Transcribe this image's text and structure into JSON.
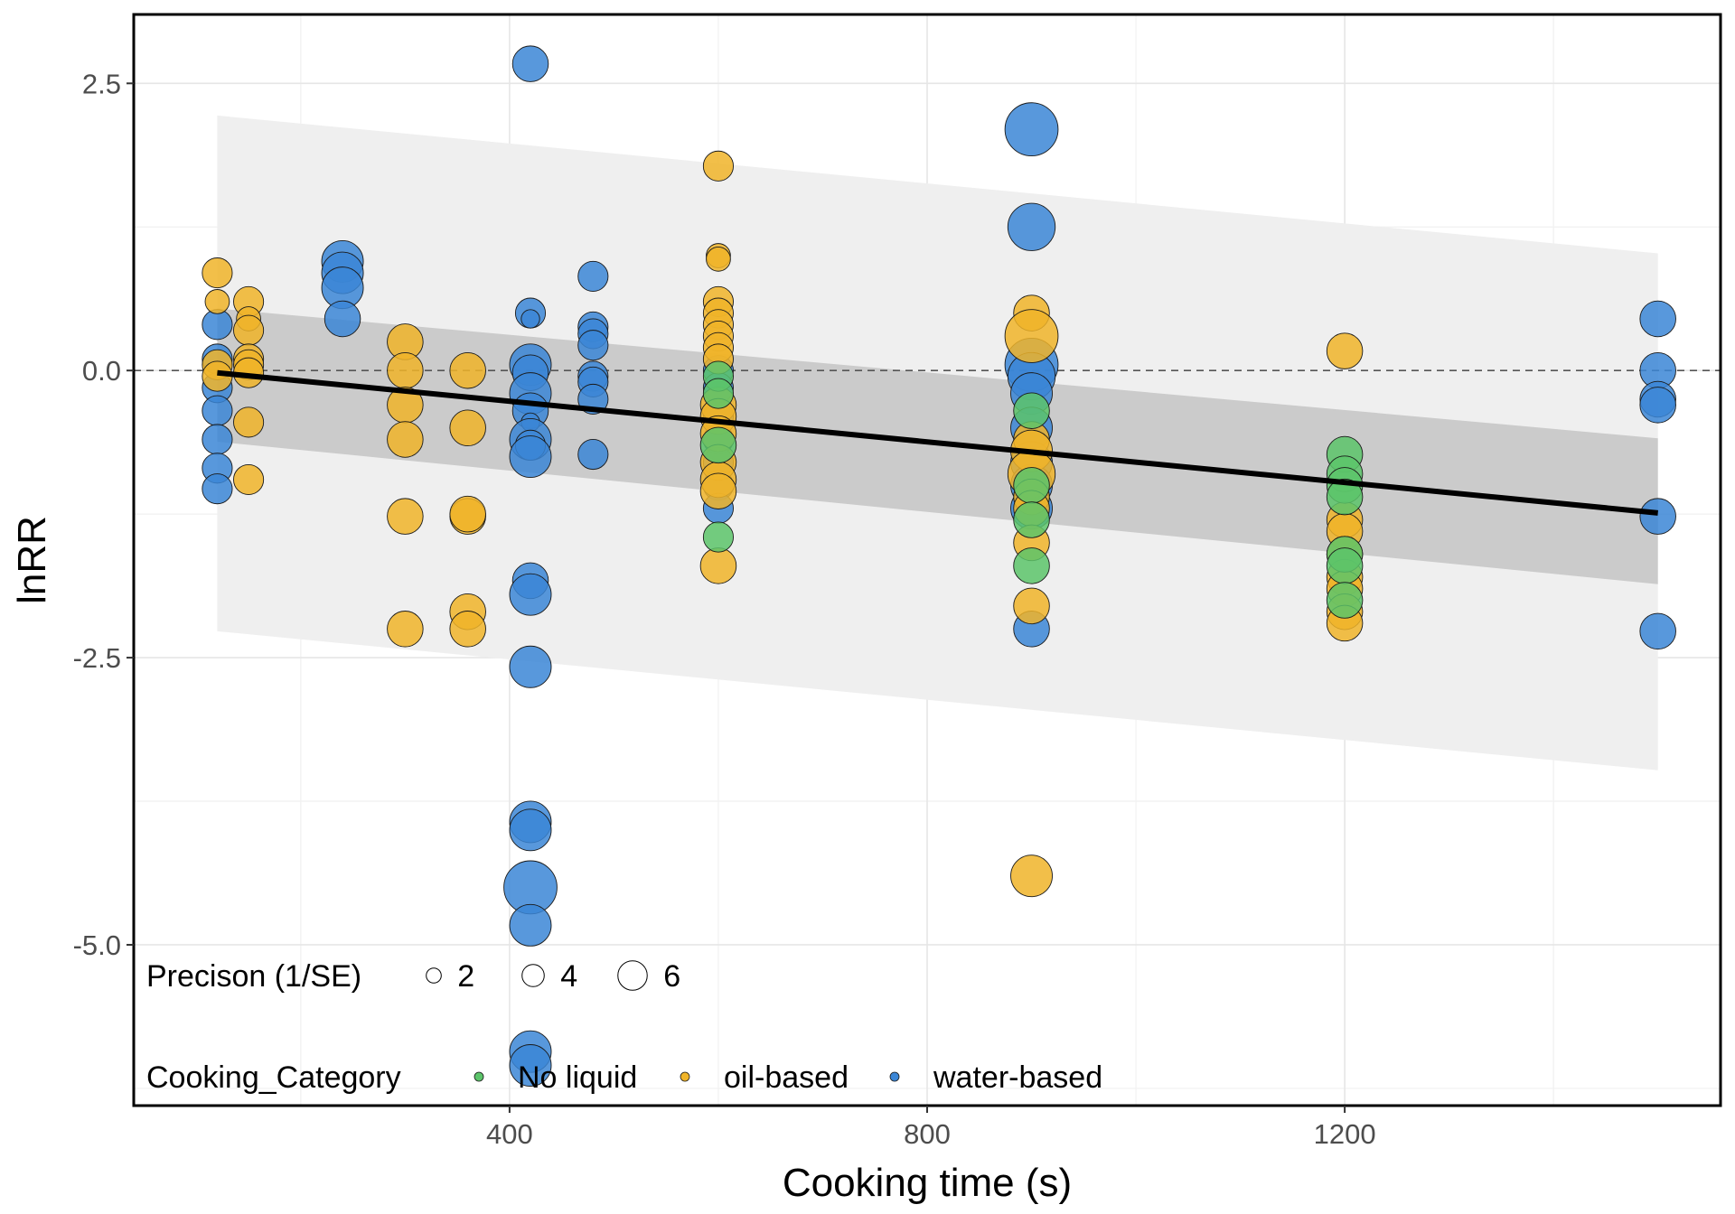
{
  "chart_data": {
    "type": "scatter",
    "title": "",
    "xlabel": "Cooking time (s)",
    "ylabel": "lnRR",
    "xlim": [
      40,
      1560
    ],
    "ylim": [
      -6.4,
      3.1
    ],
    "x_ticks": [
      400,
      800,
      1200
    ],
    "y_ticks": [
      2.5,
      0.0,
      -2.5,
      -5.0
    ],
    "x_tick_labels": [
      "400",
      "800",
      "1200"
    ],
    "y_tick_labels": [
      "2.5",
      "0.0",
      "-2.5",
      "-5.0"
    ],
    "grid": true,
    "reference_line": {
      "y": 0,
      "style": "dashed"
    },
    "regression": {
      "x": [
        120,
        1500
      ],
      "fit": [
        -0.02,
        -1.24
      ],
      "confidence_band": {
        "lower": [
          -0.62,
          -1.86
        ],
        "upper": [
          0.54,
          -0.59
        ]
      },
      "prediction_band": {
        "lower": [
          -2.27,
          -3.48
        ],
        "upper": [
          2.22,
          1.02
        ]
      }
    },
    "size_legend": {
      "title": "Precison (1/SE)",
      "values": [
        2,
        4,
        6
      ],
      "labels": [
        "2",
        "4",
        "6"
      ]
    },
    "color_legend": {
      "title": "Cooking_Category",
      "categories": [
        "No liquid",
        "oil-based",
        "water-based"
      ],
      "colors": [
        "#5cc46a",
        "#f0b429",
        "#3b86d6"
      ]
    },
    "series": [
      {
        "name": "water-based",
        "color": "#3b86d6",
        "points": [
          [
            120,
            0.4,
            3
          ],
          [
            120,
            0.1,
            3
          ],
          [
            120,
            -0.15,
            3
          ],
          [
            120,
            -0.35,
            3
          ],
          [
            120,
            -0.6,
            3
          ],
          [
            120,
            -0.85,
            3
          ],
          [
            120,
            -1.03,
            3
          ],
          [
            240,
            0.95,
            5
          ],
          [
            240,
            0.85,
            5
          ],
          [
            240,
            0.72,
            5
          ],
          [
            240,
            0.45,
            4
          ],
          [
            420,
            2.67,
            4
          ],
          [
            420,
            0.5,
            3
          ],
          [
            420,
            0.45,
            1
          ],
          [
            420,
            0.05,
            5
          ],
          [
            420,
            -0.02,
            4
          ],
          [
            420,
            -0.2,
            5
          ],
          [
            420,
            -0.35,
            4
          ],
          [
            420,
            -0.45,
            1
          ],
          [
            420,
            -0.6,
            5
          ],
          [
            420,
            -0.65,
            3
          ],
          [
            420,
            -0.75,
            5
          ],
          [
            420,
            -1.83,
            4
          ],
          [
            420,
            -1.95,
            5
          ],
          [
            420,
            -2.58,
            5
          ],
          [
            420,
            -3.93,
            5
          ],
          [
            420,
            -4.0,
            5
          ],
          [
            420,
            -4.5,
            7
          ],
          [
            420,
            -4.83,
            5
          ],
          [
            420,
            -5.93,
            5
          ],
          [
            420,
            -6.05,
            5
          ],
          [
            480,
            0.82,
            3
          ],
          [
            480,
            0.38,
            3
          ],
          [
            480,
            0.32,
            3
          ],
          [
            480,
            0.22,
            3
          ],
          [
            480,
            -0.05,
            3
          ],
          [
            480,
            -0.1,
            3
          ],
          [
            480,
            -0.25,
            3
          ],
          [
            480,
            -0.73,
            3
          ],
          [
            600,
            -0.4,
            3
          ],
          [
            600,
            -0.6,
            3
          ],
          [
            600,
            -0.8,
            3
          ],
          [
            600,
            -1.0,
            3
          ],
          [
            600,
            -1.2,
            3
          ],
          [
            600,
            0.0,
            3
          ],
          [
            600,
            -0.15,
            3
          ],
          [
            900,
            2.1,
            7
          ],
          [
            900,
            1.25,
            6
          ],
          [
            900,
            0.05,
            7
          ],
          [
            900,
            -0.05,
            6
          ],
          [
            900,
            -0.2,
            5
          ],
          [
            900,
            -0.5,
            5
          ],
          [
            900,
            -0.8,
            5
          ],
          [
            900,
            -1.0,
            5
          ],
          [
            900,
            -1.2,
            5
          ],
          [
            900,
            -2.25,
            4
          ],
          [
            1500,
            0.45,
            4
          ],
          [
            1500,
            0.0,
            4
          ],
          [
            1500,
            -0.25,
            4
          ],
          [
            1500,
            -0.3,
            4
          ],
          [
            1500,
            -1.27,
            4
          ],
          [
            1500,
            -2.27,
            4
          ]
        ]
      },
      {
        "name": "oil-based",
        "color": "#f0b429",
        "points": [
          [
            120,
            0.85,
            3
          ],
          [
            120,
            0.6,
            2
          ],
          [
            120,
            0.05,
            3
          ],
          [
            120,
            -0.05,
            3
          ],
          [
            150,
            0.6,
            3
          ],
          [
            150,
            0.45,
            2
          ],
          [
            150,
            0.35,
            3
          ],
          [
            150,
            0.1,
            3
          ],
          [
            150,
            0.05,
            3
          ],
          [
            150,
            -0.02,
            3
          ],
          [
            150,
            -0.45,
            3
          ],
          [
            150,
            -0.95,
            3
          ],
          [
            300,
            0.25,
            4
          ],
          [
            300,
            0.0,
            4
          ],
          [
            300,
            -0.3,
            4
          ],
          [
            300,
            -0.6,
            4
          ],
          [
            300,
            -1.27,
            4
          ],
          [
            300,
            -2.25,
            4
          ],
          [
            360,
            0.0,
            4
          ],
          [
            360,
            -0.5,
            4
          ],
          [
            360,
            -1.27,
            4
          ],
          [
            360,
            -1.25,
            4
          ],
          [
            360,
            -2.1,
            4
          ],
          [
            360,
            -2.25,
            4
          ],
          [
            600,
            1.78,
            3
          ],
          [
            600,
            1.0,
            2
          ],
          [
            600,
            0.97,
            2
          ],
          [
            600,
            0.6,
            3
          ],
          [
            600,
            0.5,
            3
          ],
          [
            600,
            0.4,
            3
          ],
          [
            600,
            0.3,
            3
          ],
          [
            600,
            0.2,
            3
          ],
          [
            600,
            0.1,
            3
          ],
          [
            600,
            -0.3,
            4
          ],
          [
            600,
            -0.4,
            4
          ],
          [
            600,
            -0.55,
            4
          ],
          [
            600,
            -0.8,
            4
          ],
          [
            600,
            -0.95,
            4
          ],
          [
            600,
            -1.05,
            4
          ],
          [
            600,
            -1.7,
            4
          ],
          [
            900,
            0.5,
            4
          ],
          [
            900,
            0.3,
            7
          ],
          [
            900,
            -0.6,
            4
          ],
          [
            900,
            -0.7,
            5
          ],
          [
            900,
            -0.9,
            6
          ],
          [
            900,
            -1.1,
            4
          ],
          [
            900,
            -1.2,
            4
          ],
          [
            900,
            -1.5,
            4
          ],
          [
            900,
            -2.05,
            4
          ],
          [
            900,
            -4.4,
            5
          ],
          [
            1200,
            0.17,
            4
          ],
          [
            1200,
            -1.3,
            4
          ],
          [
            1200,
            -1.4,
            4
          ],
          [
            1200,
            -1.6,
            4
          ],
          [
            1200,
            -1.8,
            4
          ],
          [
            1200,
            -1.9,
            4
          ],
          [
            1200,
            -2.1,
            4
          ],
          [
            1200,
            -2.2,
            4
          ]
        ]
      },
      {
        "name": "No liquid",
        "color": "#5cc46a",
        "points": [
          [
            600,
            -0.05,
            3
          ],
          [
            600,
            -0.2,
            3
          ],
          [
            600,
            -0.65,
            4
          ],
          [
            600,
            -1.45,
            3
          ],
          [
            900,
            -0.35,
            4
          ],
          [
            900,
            -1.0,
            4
          ],
          [
            900,
            -1.3,
            4
          ],
          [
            900,
            -1.7,
            4
          ],
          [
            1200,
            -0.73,
            4
          ],
          [
            1200,
            -0.9,
            4
          ],
          [
            1200,
            -1.0,
            4
          ],
          [
            1200,
            -1.1,
            4
          ],
          [
            1200,
            -1.6,
            4
          ],
          [
            1200,
            -1.7,
            4
          ],
          [
            1200,
            -2.0,
            4
          ]
        ]
      }
    ]
  }
}
